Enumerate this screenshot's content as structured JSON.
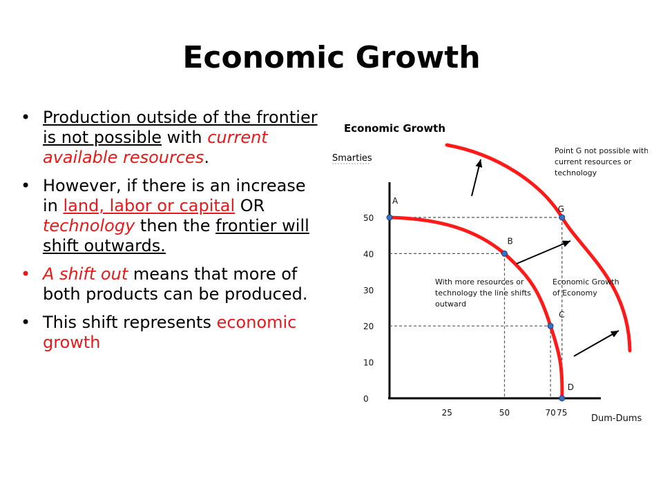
{
  "slide": {
    "title": "Economic Growth",
    "bullets": [
      {
        "segments": [
          {
            "text": "Production outside of the frontier is not possible",
            "u": true
          },
          {
            "text": " with "
          },
          {
            "text": "current available resources",
            "red": true,
            "it": true
          },
          {
            "text": "."
          }
        ]
      },
      {
        "segments": [
          {
            "text": "However, if there is an increase in "
          },
          {
            "text": "land, labor or capital",
            "red": true,
            "u": true
          },
          {
            "text": " OR "
          },
          {
            "text": "technology",
            "red": true,
            "it": true
          },
          {
            "text": " then the "
          },
          {
            "text": "frontier will shift outwards.",
            "u": true
          }
        ]
      },
      {
        "bulletColor": "#e81919",
        "segments": [
          {
            "text": "A shift out",
            "red": true,
            "it": true
          },
          {
            "text": " means that more of both products can be produced."
          }
        ]
      },
      {
        "segments": [
          {
            "text": "This shift represents "
          },
          {
            "text": "economic growth",
            "red": true
          }
        ]
      }
    ]
  },
  "chart_data": {
    "type": "line",
    "title": "Economic Growth",
    "ylabel": "Smarties",
    "xlabel": "Dum-Dums",
    "yticks": [
      "0",
      "10",
      "20",
      "30",
      "40",
      "50"
    ],
    "xticks": [
      "25",
      "50",
      "70",
      "75"
    ],
    "curve_color": "#ff1a1a",
    "series": [
      {
        "points": [
          {
            "label": "A",
            "x": 0,
            "y": 50
          },
          {
            "label": "B",
            "x": 50,
            "y": 40
          },
          {
            "label": "C",
            "x": 70,
            "y": 20
          },
          {
            "label": "D",
            "x": 75,
            "y": 0
          }
        ]
      }
    ],
    "outside_point": {
      "label": "G",
      "x": 75,
      "y": 50
    },
    "annotations": {
      "point_g_note": [
        "Point G not possible with",
        "current resources or",
        "technology"
      ],
      "shift_note": [
        "With more resources or",
        "technology the line shifts",
        "outward"
      ],
      "growth_note": [
        "Economic Growth",
        "of Economy"
      ]
    }
  }
}
